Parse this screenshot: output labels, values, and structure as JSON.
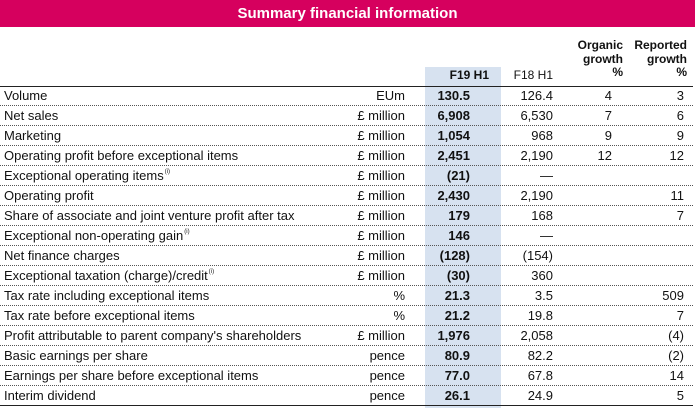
{
  "title": "Summary financial information",
  "headers": {
    "f19": "F19 H1",
    "f18": "F18 H1",
    "organic": [
      "Organic",
      "growth",
      "%"
    ],
    "reported": [
      "Reported",
      "growth",
      "%"
    ]
  },
  "highlight_color": "#d7e2f0",
  "accent_color": "#d6005e",
  "rows": [
    {
      "label": "Volume",
      "sup": "",
      "unit": "EUm",
      "f19": "130.5",
      "f18": "126.4",
      "organic": "4",
      "reported": "3"
    },
    {
      "label": "Net sales",
      "sup": "",
      "unit": "£ million",
      "f19": "6,908",
      "f18": "6,530",
      "organic": "7",
      "reported": "6"
    },
    {
      "label": "Marketing",
      "sup": "",
      "unit": "£ million",
      "f19": "1,054",
      "f18": "968",
      "organic": "9",
      "reported": "9"
    },
    {
      "label": "Operating profit before exceptional items",
      "sup": "",
      "unit": "£ million",
      "f19": "2,451",
      "f18": "2,190",
      "organic": "12",
      "reported": "12"
    },
    {
      "label": "Exceptional operating items",
      "sup": "(i)",
      "unit": "£ million",
      "f19": "(21)",
      "f18": "—",
      "organic": "",
      "reported": ""
    },
    {
      "label": "Operating profit",
      "sup": "",
      "unit": "£ million",
      "f19": "2,430",
      "f18": "2,190",
      "organic": "",
      "reported": "11"
    },
    {
      "label": "Share of associate and joint venture profit after tax",
      "sup": "",
      "unit": "£ million",
      "f19": "179",
      "f18": "168",
      "organic": "",
      "reported": "7"
    },
    {
      "label": "Exceptional non-operating gain",
      "sup": "(i)",
      "unit": "£ million",
      "f19": "146",
      "f18": "—",
      "organic": "",
      "reported": ""
    },
    {
      "label": "Net finance charges",
      "sup": "",
      "unit": "£ million",
      "f19": "(128)",
      "f18": "(154)",
      "organic": "",
      "reported": ""
    },
    {
      "label": "Exceptional taxation (charge)/credit",
      "sup": "(i)",
      "unit": "£ million",
      "f19": "(30)",
      "f18": "360",
      "organic": "",
      "reported": ""
    },
    {
      "label": "Tax rate including exceptional items",
      "sup": "",
      "unit": "%",
      "f19": "21.3",
      "f18": "3.5",
      "organic": "",
      "reported": "509"
    },
    {
      "label": "Tax rate before exceptional items",
      "sup": "",
      "unit": "%",
      "f19": "21.2",
      "f18": "19.8",
      "organic": "",
      "reported": "7"
    },
    {
      "label": "Profit attributable to parent company's shareholders",
      "sup": "",
      "unit": "£ million",
      "f19": "1,976",
      "f18": "2,058",
      "organic": "",
      "reported": "(4)"
    },
    {
      "label": "Basic earnings per share",
      "sup": "",
      "unit": "pence",
      "f19": "80.9",
      "f18": "82.2",
      "organic": "",
      "reported": "(2)"
    },
    {
      "label": "Earnings per share before exceptional items",
      "sup": "",
      "unit": "pence",
      "f19": "77.0",
      "f18": "67.8",
      "organic": "",
      "reported": "14"
    },
    {
      "label": "Interim dividend",
      "sup": "",
      "unit": "pence",
      "f19": "26.1",
      "f18": "24.9",
      "organic": "",
      "reported": "5"
    }
  ]
}
